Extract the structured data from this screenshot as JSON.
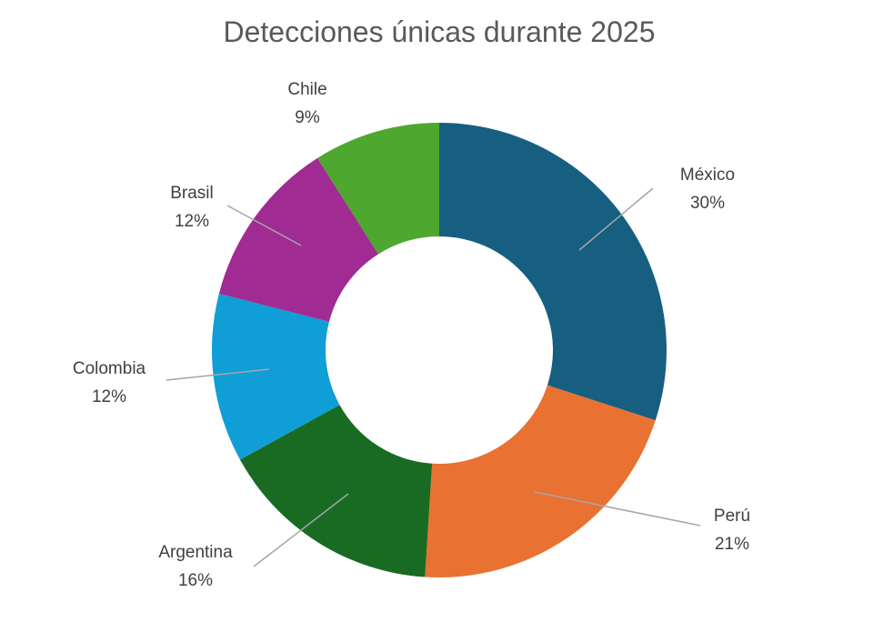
{
  "chart_data": {
    "type": "pie",
    "variant": "donut",
    "title": "Detecciones únicas durante 2025",
    "categories": [
      "México",
      "Perú",
      "Argentina",
      "Colombia",
      "Brasil",
      "Chile"
    ],
    "values": [
      30,
      21,
      16,
      12,
      12,
      9
    ],
    "data_labels": [
      "30%",
      "21%",
      "16%",
      "12%",
      "12%",
      "9%"
    ],
    "colors": [
      "#175f80",
      "#e97132",
      "#196b24",
      "#0f9ed5",
      "#a02b93",
      "#4ea72e"
    ],
    "legend": "none"
  }
}
